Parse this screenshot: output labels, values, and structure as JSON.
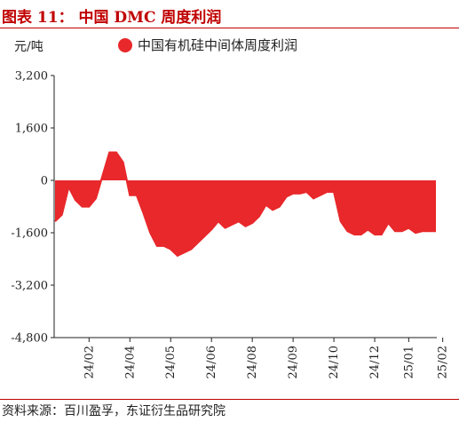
{
  "figure": {
    "title": "图表 11： 中国 DMC 周度利润",
    "source": "资料来源：百川盈孚，东证衍生品研究院"
  },
  "chart_data": {
    "type": "area",
    "unit_label": "元/吨",
    "ylim": [
      -4800,
      3200
    ],
    "yticks": [
      3200,
      1600,
      0,
      -1600,
      -3200,
      -4800
    ],
    "ytick_labels": [
      "3,200",
      "1,600",
      "0",
      "-1,600",
      "-3,200",
      "-4,800"
    ],
    "xtick_labels": [
      "24/02",
      "24/04",
      "24/05",
      "24/06",
      "24/08",
      "24/09",
      "24/10",
      "24/12",
      "25/01",
      "25/02"
    ],
    "xtick_positions": [
      5,
      11,
      17,
      23,
      29,
      35,
      41,
      47,
      52,
      57
    ],
    "legend_position": "top",
    "series": [
      {
        "name": "中国有机硅中间体周度利润",
        "color": "#e8282b",
        "values": [
          -1250,
          -1050,
          -200,
          -600,
          -800,
          -800,
          -550,
          150,
          850,
          850,
          550,
          -450,
          -450,
          -1000,
          -1600,
          -2000,
          -2000,
          -2100,
          -2300,
          -2200,
          -2100,
          -1900,
          -1700,
          -1500,
          -1250,
          -1450,
          -1350,
          -1250,
          -1400,
          -1300,
          -1100,
          -750,
          -900,
          -800,
          -500,
          -400,
          -400,
          -350,
          -550,
          -450,
          -350,
          -350,
          -1250,
          -1550,
          -1650,
          -1650,
          -1500,
          -1650,
          -1650,
          -1300,
          -1550,
          -1550,
          -1450,
          -1600,
          -1550,
          -1550,
          -1550
        ]
      }
    ]
  }
}
